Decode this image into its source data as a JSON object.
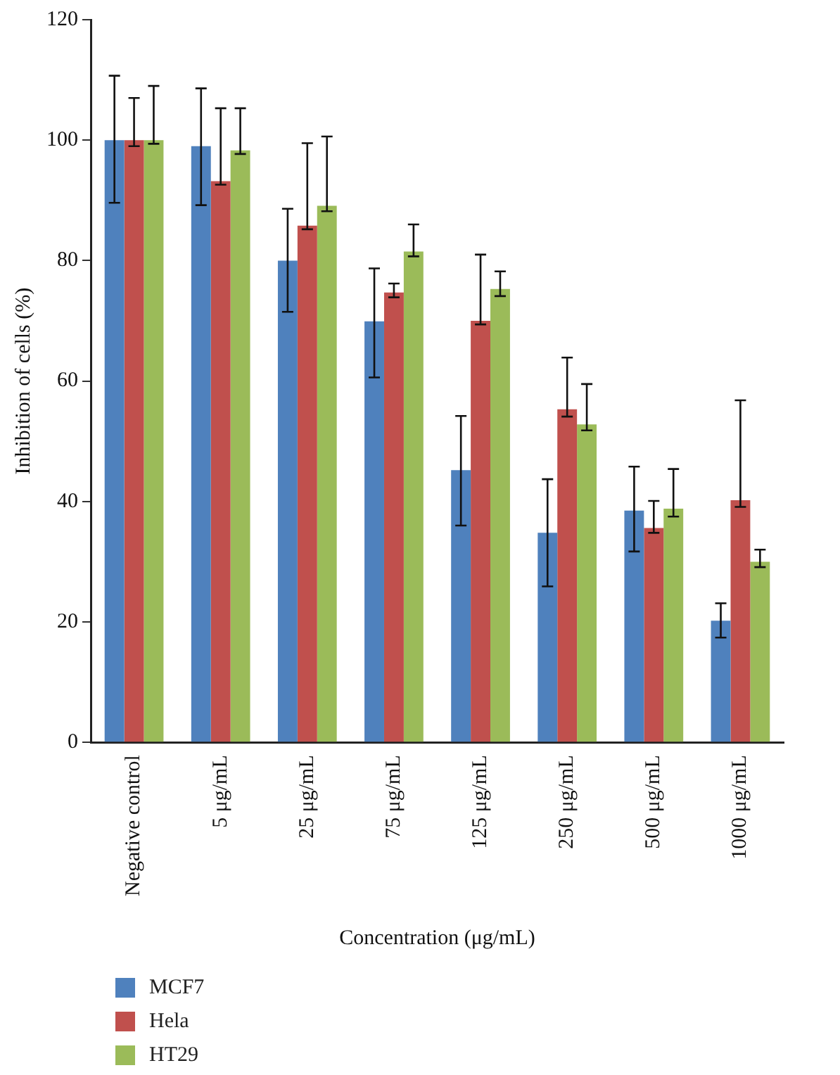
{
  "chart_data": {
    "type": "bar",
    "xlabel": "Concentration (μg/mL)",
    "ylabel": "Inhibition of cells (%)",
    "categories": [
      "Negative control",
      "5 μg/mL",
      "25 μg/mL",
      "75 μg/mL",
      "125 μg/mL",
      "250 μg/mL",
      "500 μg/mL",
      "1000 μg/mL"
    ],
    "series": [
      {
        "name": "MCF7",
        "color": "#4f81bd",
        "values": [
          100,
          99,
          80,
          69.9,
          45.2,
          34.8,
          38.5,
          20.2
        ],
        "errors": [
          [
            89.6,
            110.7
          ],
          [
            89.2,
            108.6
          ],
          [
            71.5,
            88.6
          ],
          [
            60.6,
            78.7
          ],
          [
            36,
            54.2
          ],
          [
            25.9,
            43.7
          ],
          [
            31.7,
            45.8
          ],
          [
            17.4,
            23.1
          ]
        ]
      },
      {
        "name": "Hela",
        "color": "#c0504d",
        "values": [
          100,
          93.2,
          85.8,
          74.7,
          70,
          55.3,
          35.6,
          40.2
        ],
        "errors": [
          [
            99,
            107
          ],
          [
            92.6,
            105.3
          ],
          [
            85.2,
            99.5
          ],
          [
            73.9,
            76.2
          ],
          [
            69.4,
            81
          ],
          [
            54.1,
            63.9
          ],
          [
            34.8,
            40.1
          ],
          [
            39.1,
            56.8
          ]
        ]
      },
      {
        "name": "HT29",
        "color": "#9bbb59",
        "values": [
          100,
          98.3,
          89.1,
          81.5,
          75.3,
          52.8,
          38.8,
          30
        ],
        "errors": [
          [
            99.4,
            109
          ],
          [
            97.7,
            105.3
          ],
          [
            88.2,
            100.6
          ],
          [
            80.7,
            86
          ],
          [
            74.1,
            78.2
          ],
          [
            51.8,
            59.5
          ],
          [
            37.5,
            45.4
          ],
          [
            29.1,
            32
          ]
        ]
      }
    ],
    "ylim": [
      0,
      120
    ],
    "yticks": [
      0,
      20,
      40,
      60,
      80,
      100,
      120
    ],
    "grid": false,
    "legend": "bottom left"
  }
}
